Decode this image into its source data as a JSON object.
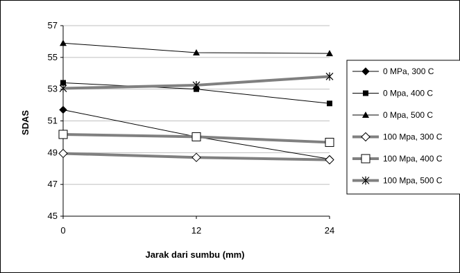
{
  "chart_data": {
    "type": "line",
    "title": "",
    "xlabel": "Jarak dari sumbu (mm)",
    "ylabel": "SDAS",
    "x": [
      0,
      12,
      24
    ],
    "x_ticks": [
      "0",
      "12",
      "24"
    ],
    "y_ticks": [
      "45",
      "47",
      "49",
      "51",
      "53",
      "55",
      "57"
    ],
    "xlim": [
      0,
      24
    ],
    "ylim": [
      45,
      57
    ],
    "grid": "horizontal",
    "legend_position": "right",
    "series": [
      {
        "name": "0 MPa, 300 C",
        "values": [
          51.7,
          50.0,
          48.6
        ],
        "marker": "diamond-filled",
        "color": "#000000",
        "width": 1
      },
      {
        "name": "0 Mpa, 400 C",
        "values": [
          53.4,
          53.0,
          52.1
        ],
        "marker": "square-filled",
        "color": "#000000",
        "width": 1
      },
      {
        "name": "0 Mpa, 500 C",
        "values": [
          55.9,
          55.3,
          55.25
        ],
        "marker": "triangle-filled",
        "color": "#000000",
        "width": 1
      },
      {
        "name": "100 Mpa, 300 C",
        "values": [
          48.95,
          48.7,
          48.55
        ],
        "marker": "diamond-open",
        "color": "#808080",
        "width": 4
      },
      {
        "name": "100 Mpa, 400 C",
        "values": [
          50.15,
          50.0,
          49.65
        ],
        "marker": "square-open",
        "color": "#808080",
        "width": 4
      },
      {
        "name": "100 Mpa, 500 C",
        "values": [
          53.05,
          53.25,
          53.8
        ],
        "marker": "star",
        "color": "#808080",
        "width": 4
      }
    ]
  }
}
